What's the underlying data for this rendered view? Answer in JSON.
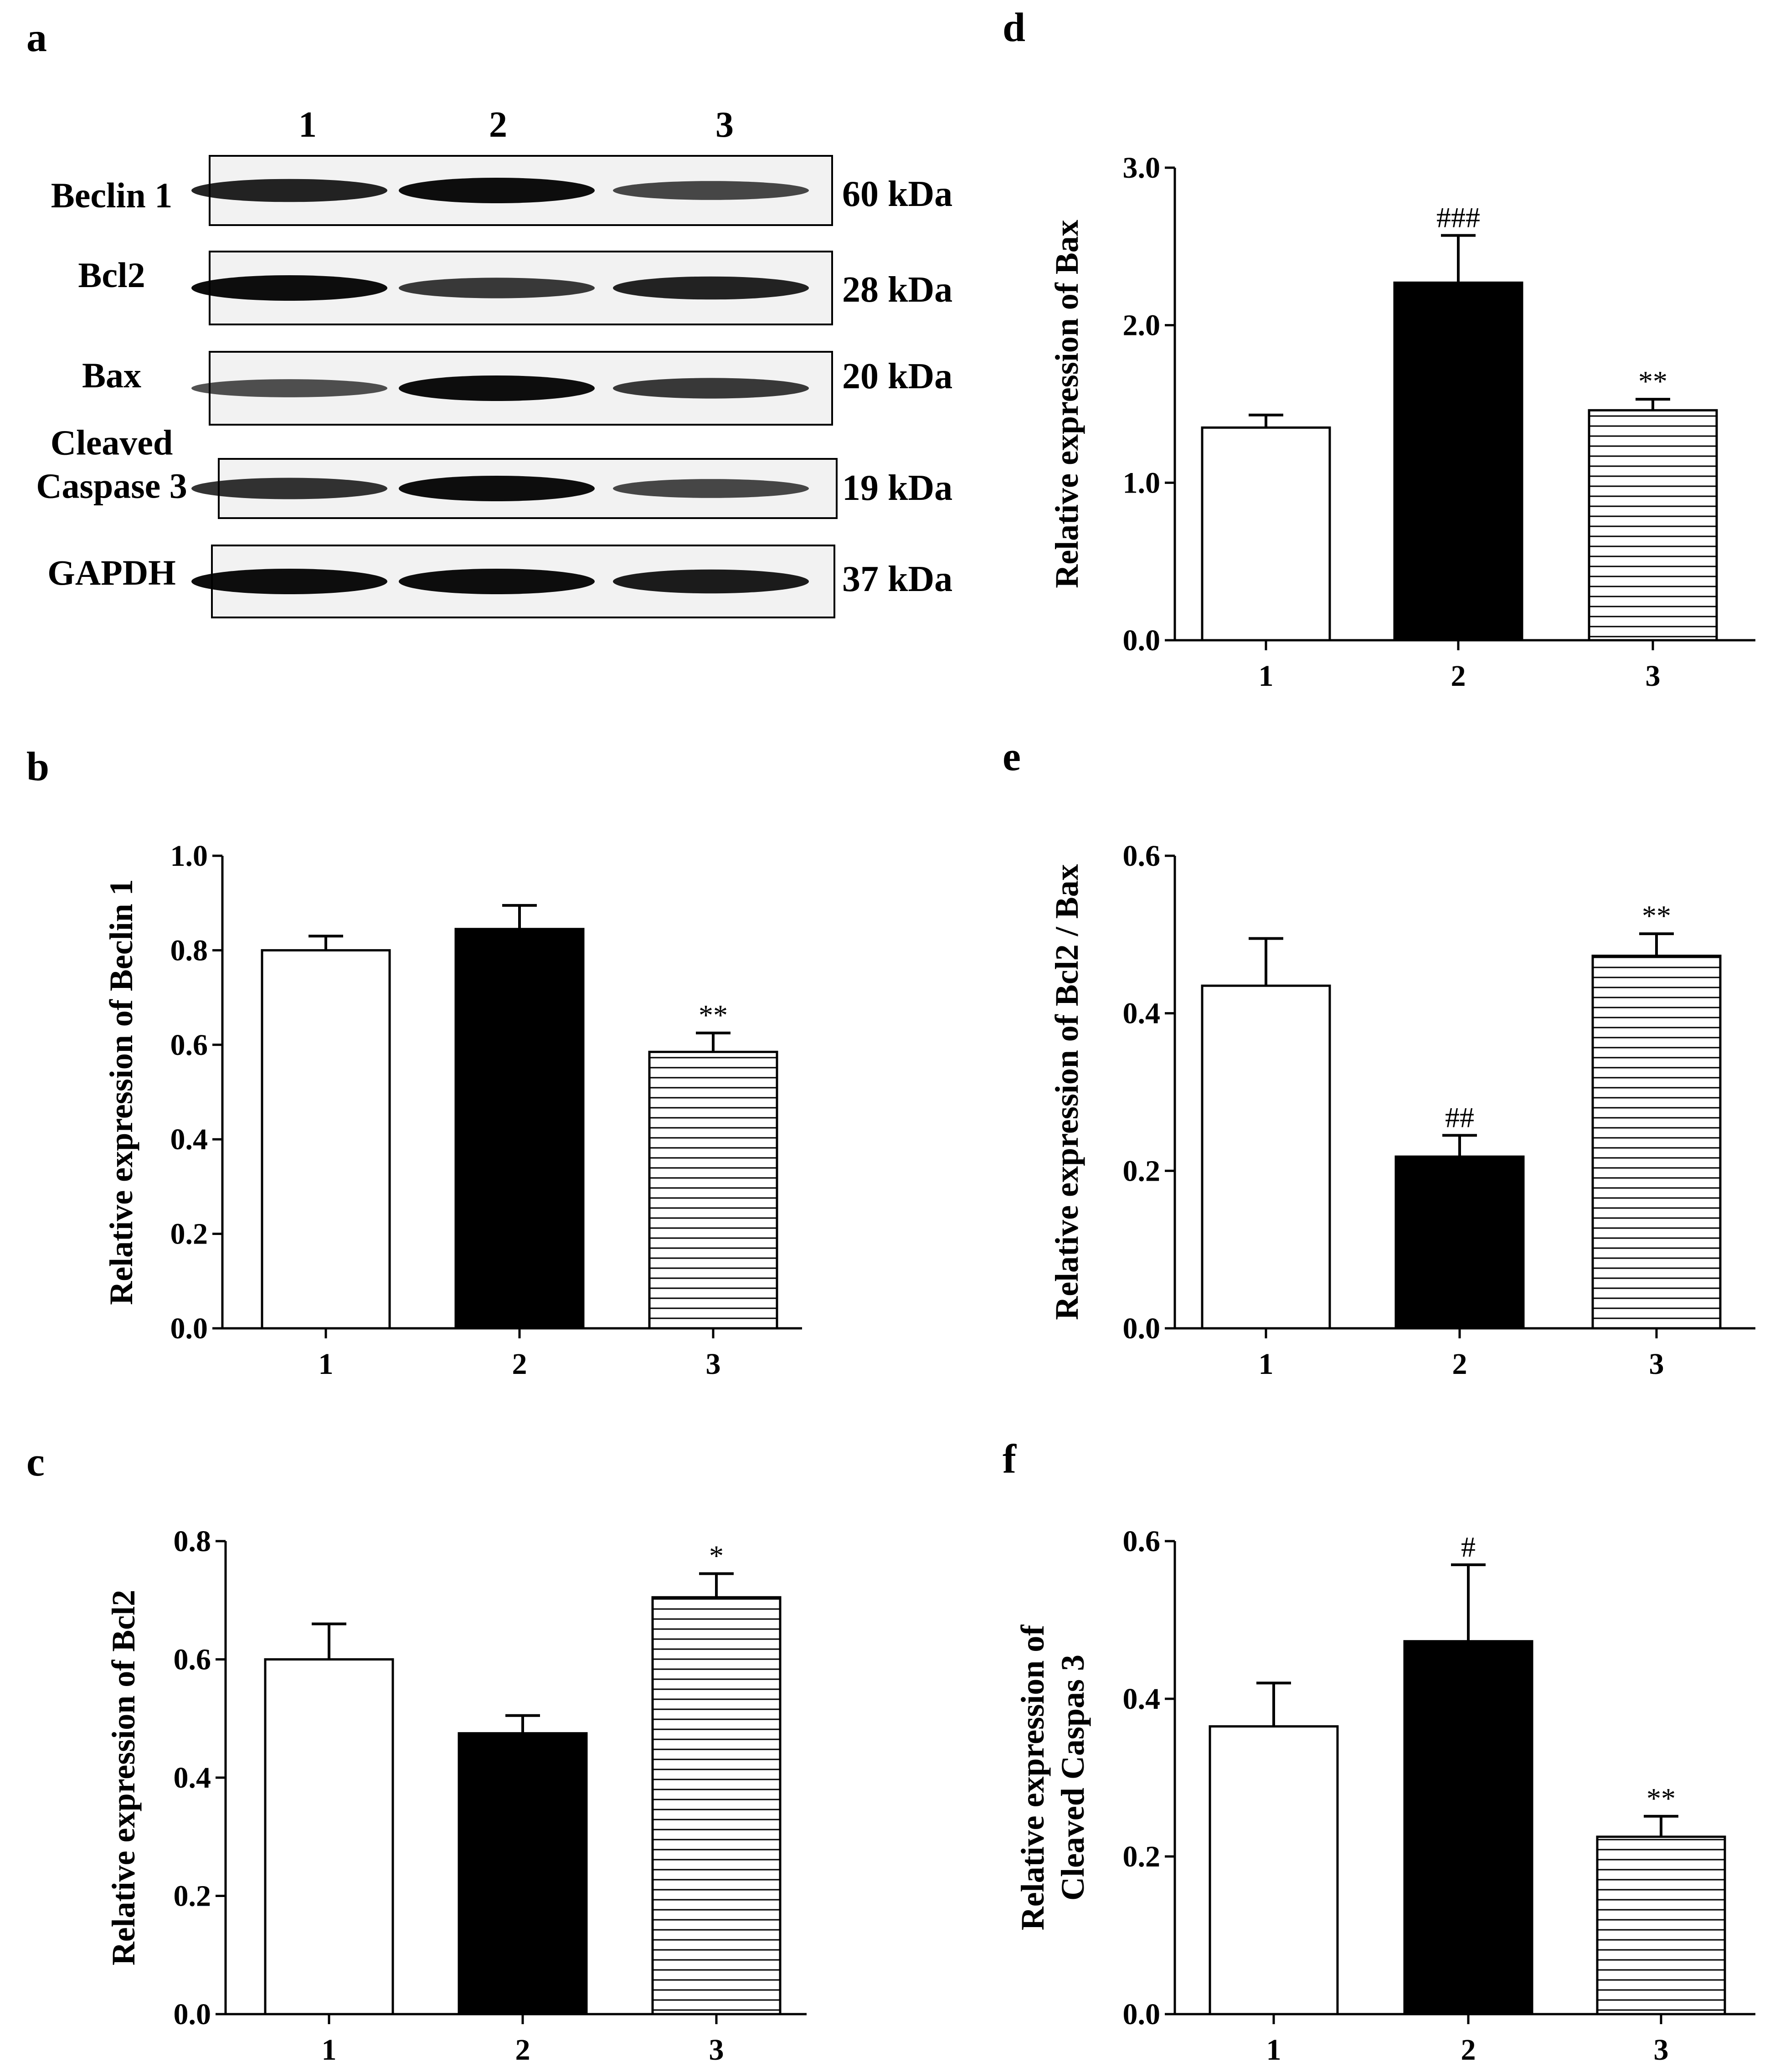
{
  "colors": {
    "ink": "#000000",
    "bg": "#ffffff",
    "blot_bg": "#f2f2f2"
  },
  "western_blot": {
    "panel_letter": "a",
    "lanes": [
      "1",
      "2",
      "3"
    ],
    "bands": [
      {
        "label_lines": [
          "Beclin 1"
        ],
        "kda": "60 kDa",
        "intensity": [
          0.85,
          1.0,
          0.6
        ]
      },
      {
        "label_lines": [
          "Bcl2"
        ],
        "kda": "28 kDa",
        "intensity": [
          1.0,
          0.7,
          0.85
        ]
      },
      {
        "label_lines": [
          "Bax"
        ],
        "kda": "20 kDa",
        "intensity": [
          0.55,
          1.0,
          0.7
        ]
      },
      {
        "label_lines": [
          "Cleaved",
          "Caspase 3"
        ],
        "kda": "19 kDa",
        "intensity": [
          0.75,
          1.0,
          0.6
        ]
      },
      {
        "label_lines": [
          "GAPDH"
        ],
        "kda": "37 kDa",
        "intensity": [
          1.0,
          1.0,
          0.9
        ]
      }
    ]
  },
  "chart_data": [
    {
      "panel": "b",
      "type": "bar",
      "categories": [
        "1",
        "2",
        "3"
      ],
      "values": [
        0.8,
        0.845,
        0.585
      ],
      "errors": [
        0.03,
        0.05,
        0.04
      ],
      "fills": [
        "white",
        "black",
        "hatch"
      ],
      "significance": [
        "",
        "",
        "**"
      ],
      "ylabel_lines": [
        "Relative expression of Beclin 1"
      ],
      "ylim": [
        0,
        1.0
      ],
      "yticks": [
        "0.0",
        "0.2",
        "0.4",
        "0.6",
        "0.8",
        "1.0"
      ]
    },
    {
      "panel": "c",
      "type": "bar",
      "categories": [
        "1",
        "2",
        "3"
      ],
      "values": [
        0.6,
        0.475,
        0.705
      ],
      "errors": [
        0.06,
        0.03,
        0.04
      ],
      "fills": [
        "white",
        "black",
        "hatch"
      ],
      "significance": [
        "",
        "",
        "*"
      ],
      "ylabel_lines": [
        "Relative expression of Bcl2"
      ],
      "ylim": [
        0,
        0.8
      ],
      "yticks": [
        "0.0",
        "0.2",
        "0.4",
        "0.6",
        "0.8"
      ]
    },
    {
      "panel": "d",
      "type": "bar",
      "categories": [
        "1",
        "2",
        "3"
      ],
      "values": [
        1.35,
        2.27,
        1.46
      ],
      "errors": [
        0.08,
        0.3,
        0.07
      ],
      "fills": [
        "white",
        "black",
        "hatch"
      ],
      "significance": [
        "",
        "###",
        "**"
      ],
      "ylabel_lines": [
        "Relative expression of Bax"
      ],
      "ylim": [
        0,
        3.0
      ],
      "yticks": [
        "0.0",
        "1.0",
        "2.0",
        "3.0"
      ]
    },
    {
      "panel": "e",
      "type": "bar",
      "categories": [
        "1",
        "2",
        "3"
      ],
      "values": [
        0.435,
        0.218,
        0.473
      ],
      "errors": [
        0.06,
        0.027,
        0.028
      ],
      "fills": [
        "white",
        "black",
        "hatch"
      ],
      "significance": [
        "",
        "##",
        "**"
      ],
      "ylabel_lines": [
        "Relative expression of  Bcl2 / Bax"
      ],
      "ylim": [
        0,
        0.6
      ],
      "yticks": [
        "0.0",
        "0.2",
        "0.4",
        "0.6"
      ]
    },
    {
      "panel": "f",
      "type": "bar",
      "categories": [
        "1",
        "2",
        "3"
      ],
      "values": [
        0.365,
        0.473,
        0.225
      ],
      "errors": [
        0.055,
        0.097,
        0.026
      ],
      "fills": [
        "white",
        "black",
        "hatch"
      ],
      "significance": [
        "",
        "#",
        "**"
      ],
      "ylabel_lines": [
        "Relative expression of",
        "Cleaved Caspas 3"
      ],
      "ylim": [
        0,
        0.6
      ],
      "yticks": [
        "0.0",
        "0.2",
        "0.4",
        "0.6"
      ]
    }
  ]
}
